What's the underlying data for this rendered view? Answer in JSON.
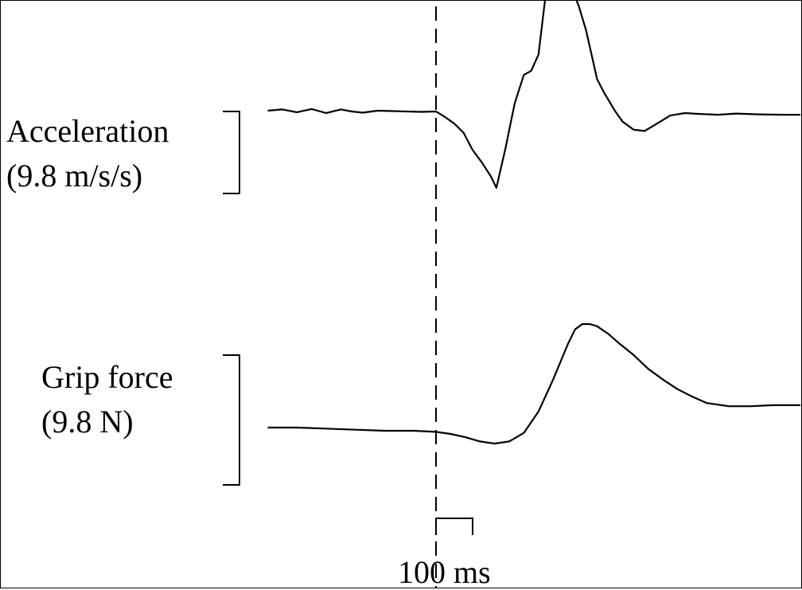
{
  "chart_data": {
    "type": "line",
    "x_unit": "ms",
    "series": [
      {
        "name": "Acceleration",
        "scale_label": "(9.8 m/s/s)",
        "x": [
          -460,
          -420,
          -380,
          -340,
          -300,
          -260,
          -230,
          -200,
          -160,
          -120,
          -80,
          -40,
          0,
          25,
          50,
          75,
          100,
          125,
          150,
          165,
          190,
          215,
          240,
          260,
          280,
          300,
          315,
          330,
          345,
          365,
          390,
          410,
          440,
          460,
          490,
          510,
          540,
          570,
          600,
          640,
          680,
          720,
          770,
          820,
          880,
          950,
          1000
        ],
        "values": [
          0.02,
          0.05,
          -0.02,
          0.06,
          -0.04,
          0.05,
          0.0,
          -0.03,
          0.02,
          0.01,
          0.0,
          -0.01,
          0.0,
          -0.14,
          -0.3,
          -0.52,
          -0.95,
          -1.25,
          -1.6,
          -1.88,
          -0.9,
          0.2,
          0.9,
          1.0,
          1.4,
          2.9,
          3.4,
          3.05,
          3.25,
          3.15,
          2.6,
          2.0,
          0.8,
          0.45,
          0.0,
          -0.25,
          -0.45,
          -0.48,
          -0.32,
          -0.1,
          -0.04,
          -0.06,
          -0.08,
          -0.05,
          -0.07,
          -0.08,
          -0.08
        ]
      },
      {
        "name": "Grip force",
        "scale_label": "(9.8 N)",
        "x": [
          -460,
          -380,
          -300,
          -220,
          -140,
          -60,
          0,
          40,
          80,
          120,
          160,
          200,
          240,
          280,
          320,
          360,
          380,
          400,
          420,
          440,
          470,
          500,
          540,
          580,
          620,
          660,
          700,
          740,
          800,
          860,
          920,
          1000
        ],
        "values": [
          0.0,
          0.0,
          -0.01,
          -0.02,
          -0.03,
          -0.03,
          -0.04,
          -0.06,
          -0.09,
          -0.13,
          -0.15,
          -0.13,
          -0.05,
          0.15,
          0.45,
          0.78,
          0.92,
          0.97,
          0.97,
          0.95,
          0.88,
          0.79,
          0.68,
          0.55,
          0.45,
          0.36,
          0.29,
          0.23,
          0.2,
          0.2,
          0.21,
          0.21
        ]
      }
    ],
    "event_marker": {
      "style": "dashed",
      "x": 0
    },
    "time_scale_bar": {
      "duration": 100,
      "label": "100 ms"
    },
    "colors": {
      "trace": "#000000",
      "background": "#ffffff"
    }
  }
}
